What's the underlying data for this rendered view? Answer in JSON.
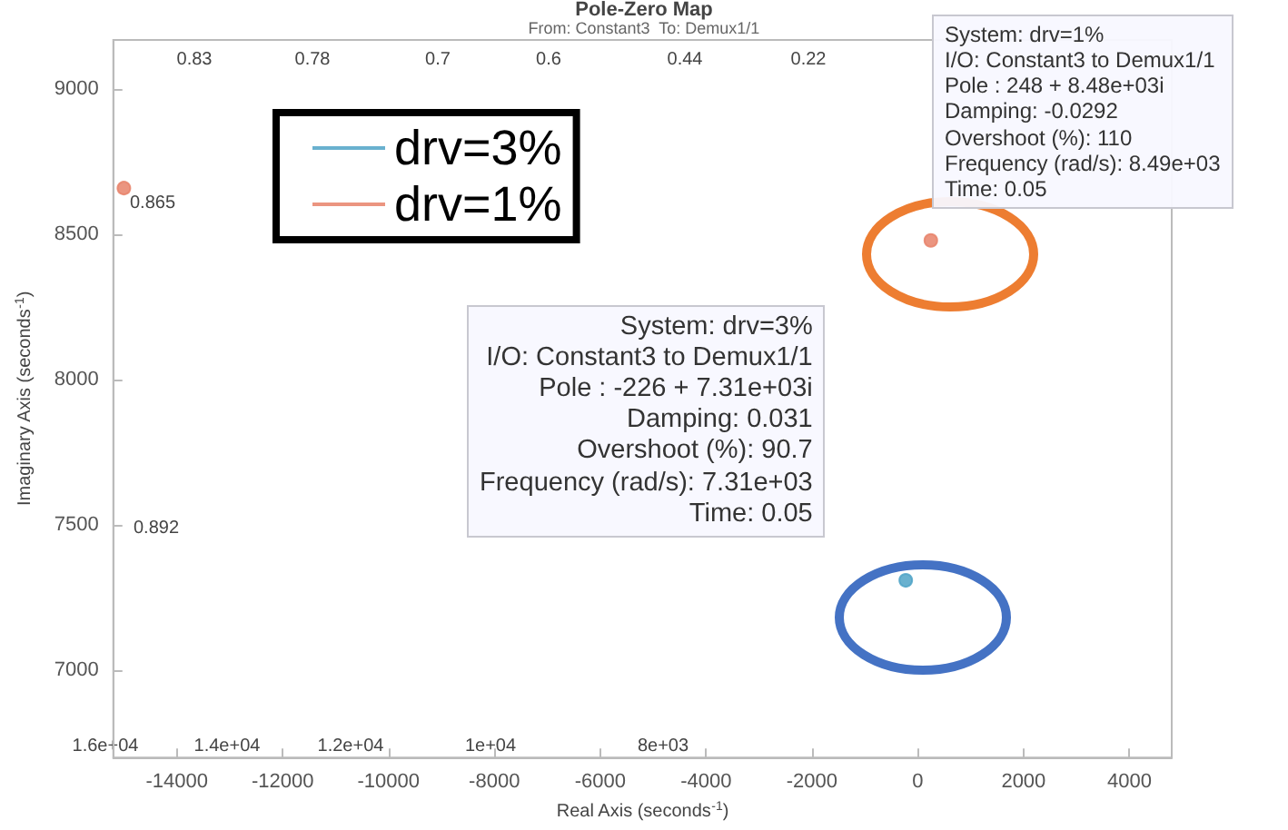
{
  "chart_data": {
    "type": "scatter",
    "title": "Pole-Zero Map",
    "subtitle": "From: Constant3  To: Demux1/1",
    "xlabel": "Real Axis (seconds$^{-1}$)",
    "ylabel": "Imaginary Axis (seconds$^{-1}$)",
    "xlim": [
      -15200,
      4800
    ],
    "xticks": [
      -14000,
      -12000,
      -10000,
      -8000,
      -6000,
      -4000,
      -2000,
      0,
      2000,
      4000
    ],
    "ylim": [
      6700,
      9170
    ],
    "yticks": [
      7000,
      7500,
      8000,
      8500,
      9000
    ],
    "series": [
      {
        "name": "drv=3%",
        "color": "#4fa3c7",
        "x": [
          -226
        ],
        "values": [
          7310
        ]
      },
      {
        "name": "drv=1%",
        "color": "#e8826a",
        "x": [
          -15000,
          248
        ],
        "values": [
          8660,
          8480
        ]
      }
    ],
    "annotations": [
      "System: drv=1%\nI/O: Constant3 to Demux1/1\nPole : 248 + 8.48e+03i\nDamping: -0.0292\nOvershoot (%): 110\nFrequency (rad/s): 8.49e+03\nTime: 0.05",
      "System: drv=3%\nI/O: Constant3 to Demux1/1\nPole : -226 + 7.31e+03i\nDamping: 0.031\nOvershoot (%): 90.7\nFrequency (rad/s): 7.31e+03\nTime: 0.05",
      "0.83",
      "0.78",
      "0.7",
      "0.6",
      "0.44",
      "0.22",
      "0.865",
      "0.892",
      "1.6e+04",
      "1.4e+04",
      "1.2e+04",
      "1e+04",
      "8e+03"
    ],
    "marker": "circle",
    "legend": "top left",
    "grid": false
  }
}
